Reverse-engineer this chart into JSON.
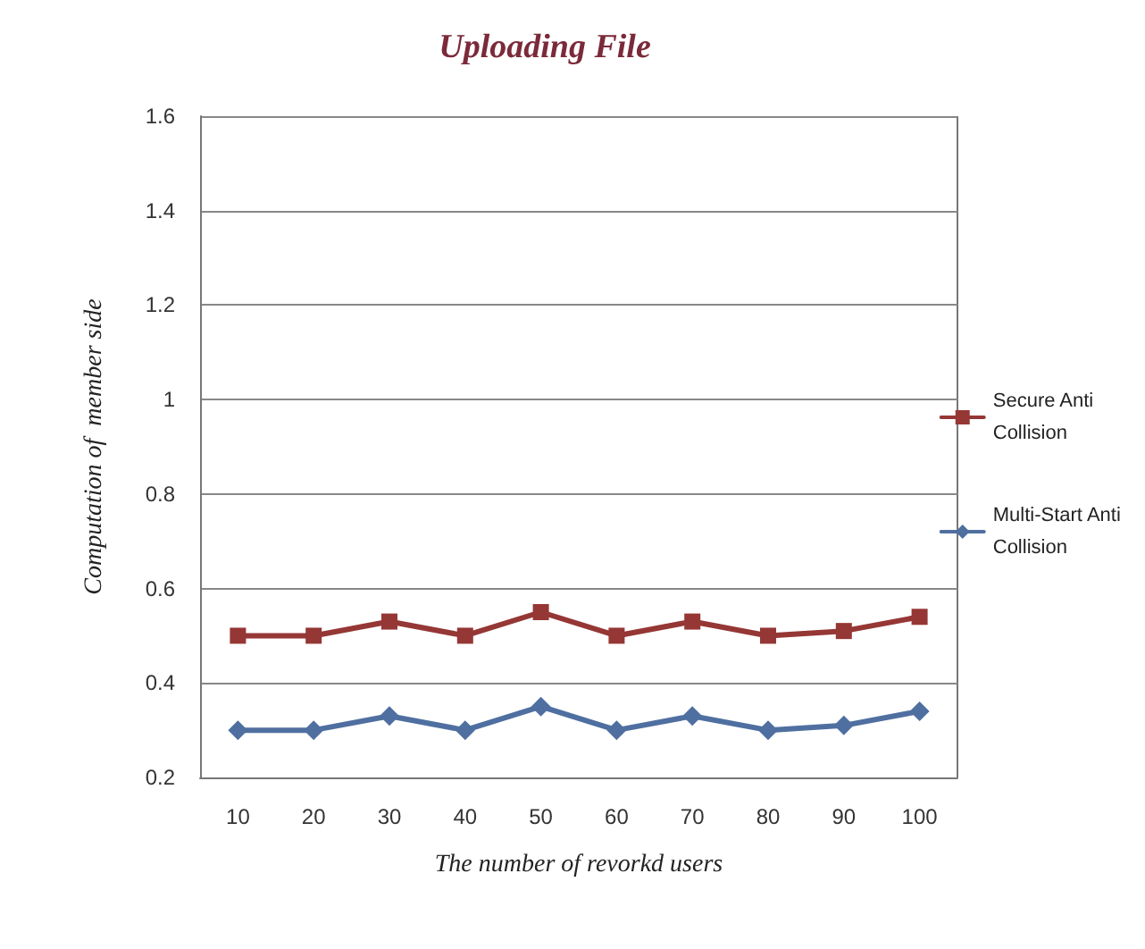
{
  "chart_data": {
    "type": "line",
    "title": "Uploading File",
    "xlabel": "The number of revorkd users",
    "ylabel": "Computation of  member side",
    "categories": [
      "10",
      "20",
      "30",
      "40",
      "50",
      "60",
      "70",
      "80",
      "90",
      "100"
    ],
    "series": [
      {
        "name": "Secure Anti Collision",
        "color": "#953735",
        "marker": "square",
        "values": [
          0.5,
          0.5,
          0.53,
          0.5,
          0.55,
          0.5,
          0.53,
          0.5,
          0.51,
          0.54
        ]
      },
      {
        "name": "Multi-Start Anti Collision",
        "color": "#4f6fa0",
        "marker": "diamond",
        "values": [
          0.3,
          0.3,
          0.33,
          0.3,
          0.35,
          0.3,
          0.33,
          0.3,
          0.31,
          0.34
        ]
      }
    ],
    "ylim": [
      0.2,
      1.6
    ],
    "yticks": [
      0.2,
      0.4,
      0.6,
      0.8,
      1,
      1.2,
      1.4,
      1.6
    ],
    "grid": "y",
    "legend": "right",
    "line_style": "solid"
  }
}
